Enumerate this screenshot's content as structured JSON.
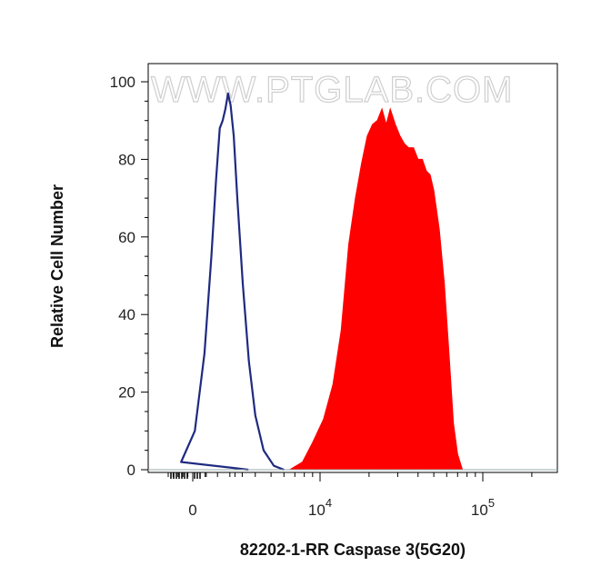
{
  "chart_data": {
    "type": "area",
    "watermark": "WWW.PTGLAB.COM",
    "xlabel": "82202-1-RR Caspase 3(5G20)",
    "ylabel": "Relative Cell Number",
    "ylim": [
      0,
      100
    ],
    "x_scale": "biexponential (log above 10^3)",
    "y_ticks": [
      "0",
      "20",
      "40",
      "60",
      "80",
      "100"
    ],
    "x_ticks": [
      {
        "base": "0",
        "exp": ""
      },
      {
        "base": "10",
        "exp": "4"
      },
      {
        "base": "10",
        "exp": "5"
      }
    ],
    "series": [
      {
        "name": "",
        "style": "outline",
        "color": "#1f2a80",
        "points": [
          [
            900,
            0
          ],
          [
            1400,
            2
          ],
          [
            1700,
            10
          ],
          [
            1950,
            30
          ],
          [
            2150,
            55
          ],
          [
            2300,
            75
          ],
          [
            2420,
            88
          ],
          [
            2520,
            90
          ],
          [
            2620,
            93
          ],
          [
            2720,
            97
          ],
          [
            2820,
            94
          ],
          [
            2950,
            86
          ],
          [
            3100,
            70
          ],
          [
            3350,
            48
          ],
          [
            3650,
            28
          ],
          [
            4000,
            14
          ],
          [
            4500,
            5
          ],
          [
            5200,
            1
          ],
          [
            6000,
            0
          ]
        ]
      },
      {
        "name": "",
        "style": "filled",
        "color": "#ff0000",
        "points": [
          [
            6500,
            0
          ],
          [
            7800,
            2
          ],
          [
            9000,
            7
          ],
          [
            10500,
            13
          ],
          [
            12000,
            22
          ],
          [
            13500,
            36
          ],
          [
            15000,
            58
          ],
          [
            16500,
            70
          ],
          [
            18000,
            79
          ],
          [
            19500,
            86
          ],
          [
            21000,
            89
          ],
          [
            22500,
            90
          ],
          [
            24000,
            93
          ],
          [
            25500,
            89
          ],
          [
            27000,
            93
          ],
          [
            29000,
            89
          ],
          [
            31000,
            86
          ],
          [
            33000,
            84
          ],
          [
            35000,
            83
          ],
          [
            37500,
            83
          ],
          [
            40000,
            80
          ],
          [
            42500,
            80
          ],
          [
            45000,
            77
          ],
          [
            47500,
            76
          ],
          [
            50000,
            72
          ],
          [
            54000,
            62
          ],
          [
            58000,
            48
          ],
          [
            62000,
            30
          ],
          [
            66000,
            12
          ],
          [
            70000,
            4
          ],
          [
            75000,
            0
          ]
        ]
      }
    ]
  }
}
